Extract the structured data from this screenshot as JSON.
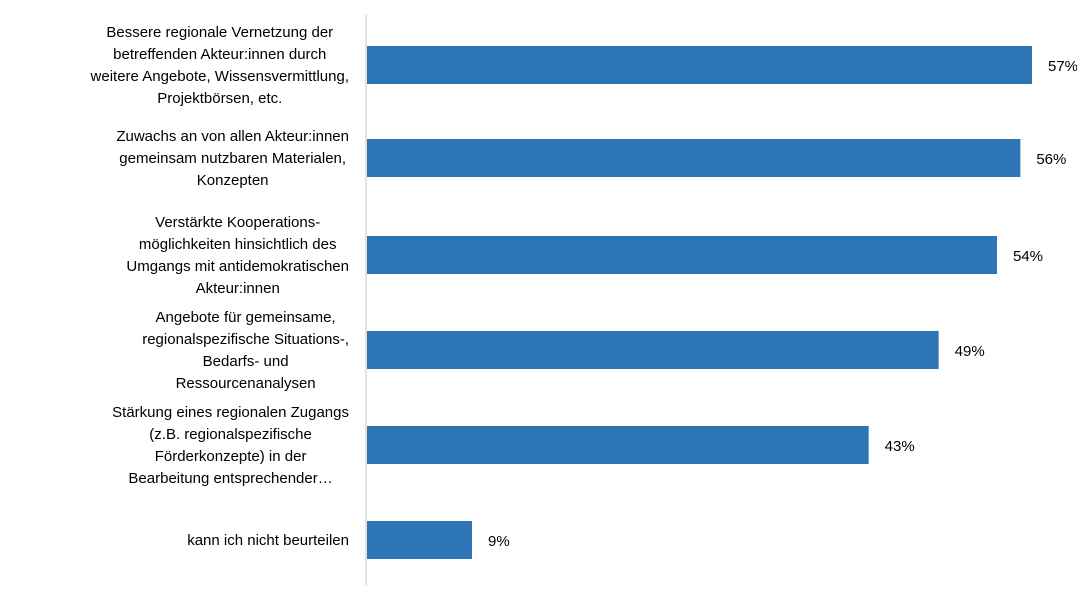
{
  "chart_data": {
    "type": "bar",
    "orientation": "horizontal",
    "categories": [
      [
        "Bessere regionale Vernetzung der",
        "betreffenden Akteur:innen durch",
        "weitere Angebote, Wissensvermittlung,",
        "Projektbörsen, etc."
      ],
      [
        "Zuwachs an von allen Akteur:innen",
        "gemeinsam nutzbaren Materialen,",
        "Konzepten"
      ],
      [
        "Verstärkte Kooperations-",
        "möglichkeiten hinsichtlich des",
        "Umgangs mit antidemokratischen",
        "Akteur:innen"
      ],
      [
        "Angebote für gemeinsame,",
        "regionalspezifische Situations-,",
        "Bedarfs- und",
        "Ressourcenanalysen"
      ],
      [
        "Stärkung eines regionalen Zugangs",
        "(z.B. regionalspezifische",
        "Förderkonzepte) in der",
        "Bearbeitung entsprechender…"
      ],
      [
        "kann ich nicht beurteilen"
      ]
    ],
    "values": [
      57,
      56,
      54,
      49,
      43,
      9
    ],
    "value_labels": [
      "57%",
      "56%",
      "54%",
      "49%",
      "43%",
      "9%"
    ],
    "xlim": [
      0,
      57
    ],
    "grid": false,
    "legend": "none",
    "bar_color": "#2E75B6"
  }
}
